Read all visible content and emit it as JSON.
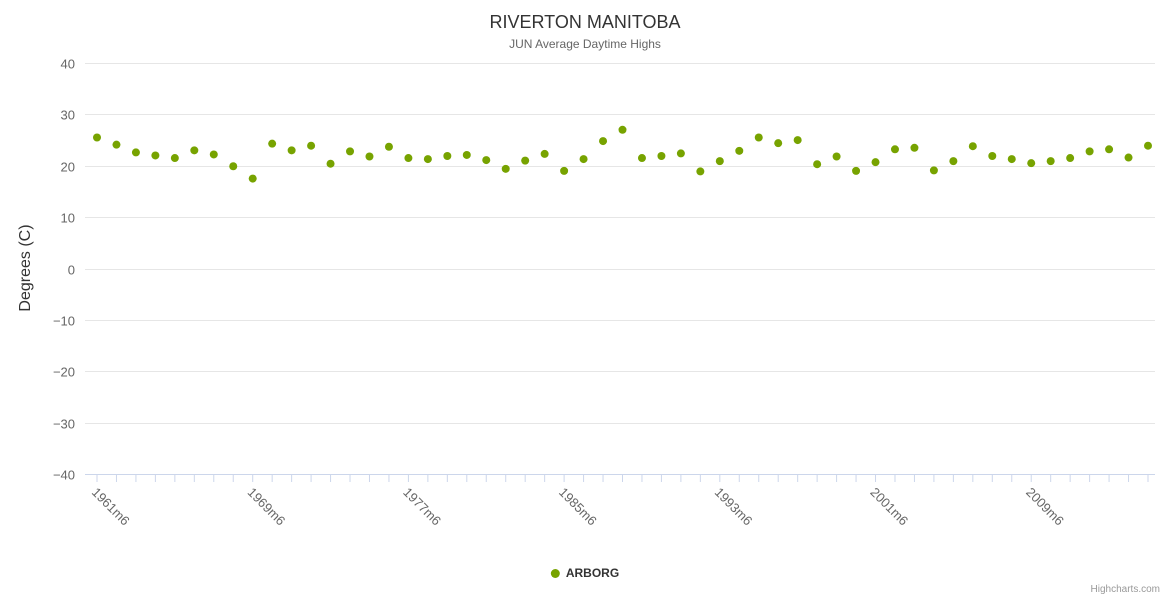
{
  "chart": {
    "title": "RIVERTON MANITOBA",
    "subtitle": "JUN Average Daytime Highs",
    "y_axis_title": "Degrees (C)",
    "legend_label": "ARBORG",
    "credit": "Highcharts.com",
    "series_color": "#77a300"
  },
  "chart_data": {
    "type": "scatter",
    "title": "RIVERTON MANITOBA",
    "subtitle": "JUN Average Daytime Highs",
    "xlabel": "",
    "ylabel": "Degrees (C)",
    "ylim": [
      -40,
      40
    ],
    "ytick_step": 10,
    "grid": "horizontal",
    "legend_position": "bottom-center",
    "x_start_year": 1961,
    "x_label_suffix": "m6",
    "x_label_interval": 8,
    "x_tick_labels_visible": [
      "1961m6",
      "1969m6",
      "1977m6",
      "1985m6",
      "1993m6",
      "2001m6",
      "2009m6"
    ],
    "series": [
      {
        "name": "ARBORG",
        "color": "#77a300",
        "values": [
          25.5,
          24.1,
          22.6,
          22.0,
          21.5,
          23.0,
          22.2,
          19.9,
          17.5,
          24.3,
          23.0,
          23.9,
          20.4,
          22.8,
          21.8,
          23.7,
          21.5,
          21.3,
          21.9,
          22.1,
          21.1,
          19.4,
          21.0,
          22.3,
          19.0,
          21.3,
          24.8,
          27.0,
          21.5,
          21.9,
          22.4,
          18.9,
          20.9,
          22.9,
          25.5,
          24.4,
          25.0,
          20.3,
          21.8,
          19.0,
          20.7,
          23.2,
          23.5,
          19.1,
          20.9,
          23.8,
          21.9,
          21.3,
          20.5,
          20.9,
          21.5,
          22.8,
          23.2,
          21.6,
          23.9
        ]
      }
    ]
  }
}
